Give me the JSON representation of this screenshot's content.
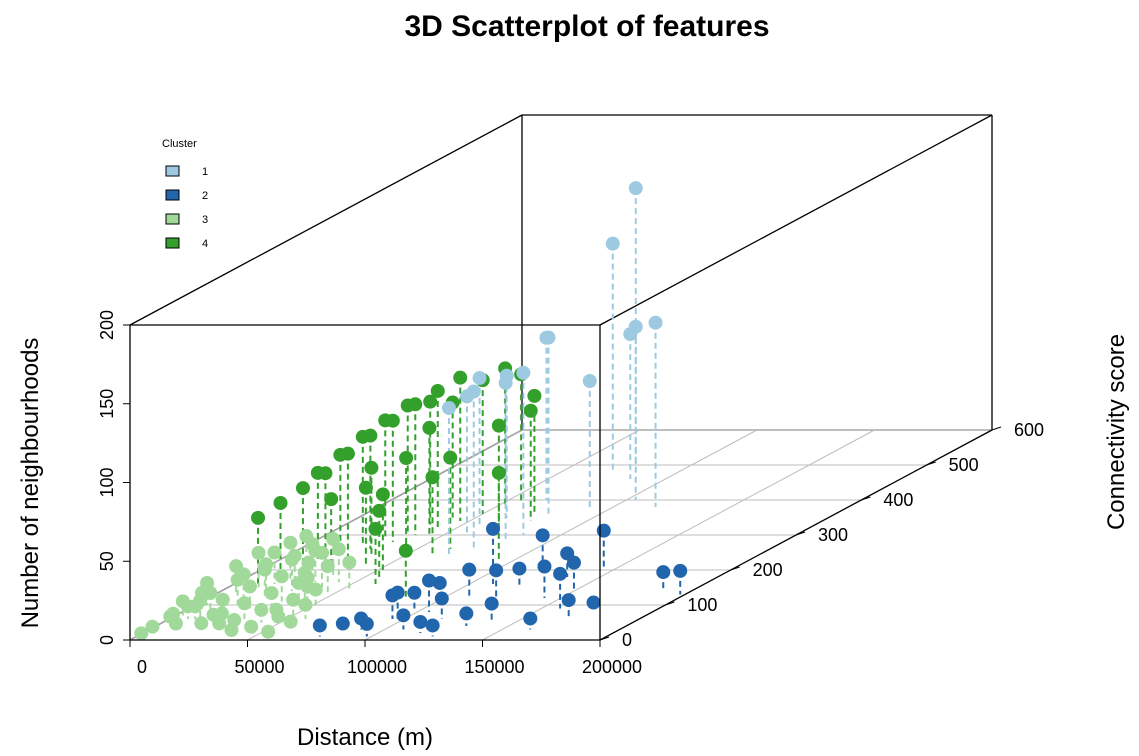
{
  "chart_data": {
    "type": "scatter3d",
    "title": "3D Scatterplot of features",
    "xlabel": "Distance (m)",
    "ylabel": "Connectivity score",
    "zlabel": "Number of neighbourhoods",
    "xlim": [
      0,
      200000
    ],
    "ylim": [
      0,
      600
    ],
    "zlim": [
      0,
      200
    ],
    "x_ticks": [
      "0",
      "50000",
      "100000",
      "150000",
      "200000"
    ],
    "y_ticks": [
      "0",
      "100",
      "200",
      "300",
      "400",
      "500",
      "600"
    ],
    "z_ticks": [
      "0",
      "50",
      "100",
      "150",
      "200"
    ],
    "grid": true,
    "legend": {
      "title": "Cluster",
      "position": "top-left"
    },
    "series": [
      {
        "name": "1",
        "color": "#9ecae1",
        "points": [
          [
            72000,
            480,
            145
          ],
          [
            79000,
            490,
            178
          ],
          [
            66000,
            400,
            103
          ],
          [
            78000,
            360,
            112
          ],
          [
            57000,
            330,
            93
          ],
          [
            60000,
            300,
            88
          ],
          [
            63000,
            350,
            90
          ],
          [
            85000,
            460,
            92
          ],
          [
            90000,
            380,
            80
          ],
          [
            104000,
            400,
            110
          ],
          [
            118000,
            380,
            117
          ],
          [
            69000,
            240,
            94
          ],
          [
            74000,
            260,
            100
          ],
          [
            82000,
            280,
            101
          ],
          [
            84000,
            300,
            103
          ]
        ]
      },
      {
        "name": "2",
        "color": "#2166ac",
        "points": [
          [
            78000,
            10,
            7
          ],
          [
            85000,
            20,
            6
          ],
          [
            90000,
            30,
            7
          ],
          [
            98000,
            10,
            8
          ],
          [
            95000,
            60,
            15
          ],
          [
            100000,
            50,
            19
          ],
          [
            105000,
            80,
            20
          ],
          [
            108000,
            30,
            9
          ],
          [
            111000,
            120,
            18
          ],
          [
            116000,
            60,
            13
          ],
          [
            118000,
            20,
            7
          ],
          [
            126000,
            10,
            7
          ],
          [
            128000,
            100,
            22
          ],
          [
            110000,
            160,
            35
          ],
          [
            120000,
            200,
            22
          ],
          [
            140000,
            50,
            12
          ],
          [
            143000,
            120,
            20
          ],
          [
            146000,
            200,
            25
          ],
          [
            150000,
            140,
            18
          ],
          [
            158000,
            90,
            22
          ],
          [
            162000,
            30,
            7
          ],
          [
            170000,
            60,
            12
          ],
          [
            175000,
            80,
            6
          ],
          [
            188000,
            140,
            12
          ],
          [
            198000,
            130,
            15
          ],
          [
            104000,
            100,
            14
          ],
          [
            96000,
            90,
            10
          ],
          [
            132000,
            40,
            8
          ],
          [
            124000,
            150,
            12
          ],
          [
            136000,
            180,
            15
          ]
        ]
      },
      {
        "name": "3",
        "color": "#a1d99b",
        "points": [
          [
            2000,
            10,
            2
          ],
          [
            4000,
            20,
            4
          ],
          [
            6000,
            40,
            6
          ],
          [
            8000,
            60,
            8
          ],
          [
            10000,
            30,
            10
          ],
          [
            12000,
            80,
            12
          ],
          [
            14000,
            20,
            6
          ],
          [
            16000,
            50,
            14
          ],
          [
            18000,
            100,
            16
          ],
          [
            20000,
            70,
            10
          ],
          [
            22000,
            30,
            4
          ],
          [
            24000,
            120,
            18
          ],
          [
            26000,
            90,
            14
          ],
          [
            28000,
            40,
            8
          ],
          [
            30000,
            140,
            20
          ],
          [
            32000,
            60,
            10
          ],
          [
            34000,
            110,
            16
          ],
          [
            36000,
            30,
            6
          ],
          [
            38000,
            80,
            12
          ],
          [
            40000,
            150,
            22
          ],
          [
            42000,
            50,
            8
          ],
          [
            44000,
            100,
            14
          ],
          [
            46000,
            20,
            4
          ],
          [
            48000,
            130,
            18
          ],
          [
            50000,
            70,
            10
          ],
          [
            52000,
            40,
            6
          ],
          [
            54000,
            90,
            12
          ],
          [
            56000,
            10,
            3
          ],
          [
            58000,
            60,
            9
          ],
          [
            60000,
            30,
            5
          ],
          [
            5000,
            100,
            14
          ],
          [
            9000,
            130,
            18
          ],
          [
            13000,
            150,
            22
          ],
          [
            17000,
            160,
            20
          ],
          [
            21000,
            170,
            24
          ],
          [
            25000,
            180,
            26
          ],
          [
            29000,
            175,
            22
          ],
          [
            33000,
            165,
            20
          ],
          [
            37000,
            140,
            18
          ],
          [
            41000,
            120,
            16
          ],
          [
            45000,
            110,
            15
          ],
          [
            49000,
            95,
            13
          ],
          [
            3000,
            70,
            9
          ],
          [
            7000,
            85,
            11
          ],
          [
            11000,
            60,
            8
          ],
          [
            15000,
            120,
            15
          ],
          [
            19000,
            140,
            17
          ],
          [
            23000,
            45,
            6
          ],
          [
            27000,
            155,
            19
          ],
          [
            31000,
            25,
            5
          ],
          [
            35000,
            185,
            23
          ],
          [
            39000,
            15,
            3
          ],
          [
            43000,
            165,
            21
          ],
          [
            47000,
            55,
            7
          ],
          [
            53000,
            145,
            17
          ]
        ]
      },
      {
        "name": "4",
        "color": "#33a02c",
        "points": [
          [
            10000,
            160,
            42
          ],
          [
            14000,
            180,
            47
          ],
          [
            18000,
            200,
            52
          ],
          [
            22000,
            220,
            57
          ],
          [
            26000,
            240,
            65
          ],
          [
            30000,
            260,
            72
          ],
          [
            34000,
            280,
            77
          ],
          [
            38000,
            300,
            83
          ],
          [
            42000,
            320,
            87
          ],
          [
            46000,
            340,
            91
          ],
          [
            20000,
            250,
            62
          ],
          [
            24000,
            270,
            69
          ],
          [
            28000,
            290,
            75
          ],
          [
            32000,
            310,
            80
          ],
          [
            36000,
            330,
            78
          ],
          [
            40000,
            350,
            73
          ],
          [
            44000,
            300,
            68
          ],
          [
            48000,
            250,
            60
          ],
          [
            52000,
            200,
            48
          ],
          [
            56000,
            180,
            42
          ],
          [
            60000,
            160,
            35
          ],
          [
            64000,
            260,
            58
          ],
          [
            68000,
            320,
            65
          ],
          [
            72000,
            360,
            75
          ],
          [
            76000,
            340,
            70
          ],
          [
            16000,
            230,
            55
          ],
          [
            30000,
            200,
            45
          ],
          [
            50000,
            360,
            85
          ],
          [
            54000,
            380,
            88
          ],
          [
            58000,
            390,
            82
          ],
          [
            84000,
            120,
            30
          ],
          [
            93000,
            230,
            55
          ],
          [
            62000,
            240,
            50
          ],
          [
            36000,
            240,
            56
          ],
          [
            42000,
            210,
            50
          ]
        ]
      }
    ]
  }
}
